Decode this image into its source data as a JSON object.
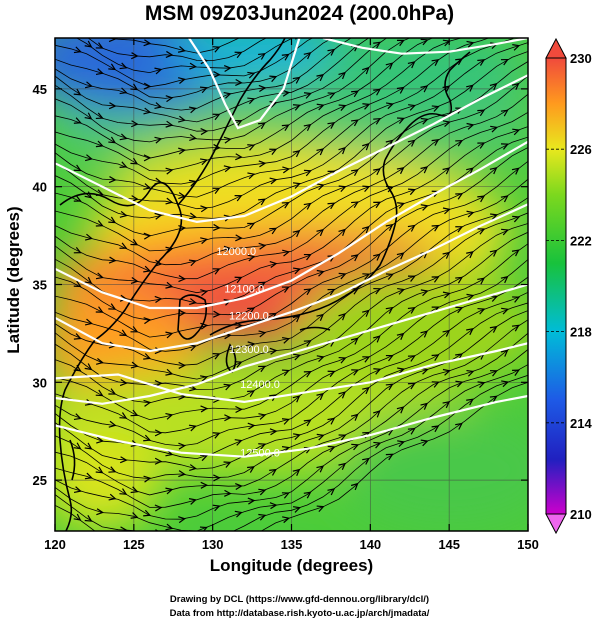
{
  "title": "MSM 09Z03Jun2024 (200.0hPa)",
  "xlabel": "Longitude (degrees)",
  "ylabel": "Latitude  (degrees)",
  "credits": [
    "Drawing by DCL (https://www.gfd-dennou.org/library/dcl/)",
    "Data from http://database.rish.kyoto-u.ac.jp/arch/jmadata/"
  ],
  "map": {
    "lon_range": [
      120,
      150
    ],
    "lat_range": [
      22.4,
      47.6
    ],
    "lon_ticks": [
      "120",
      "125",
      "130",
      "135",
      "140",
      "145",
      "150"
    ],
    "lat_ticks": [
      "25",
      "30",
      "35",
      "40",
      "45"
    ],
    "shaded_field": "temperature",
    "contour_field": "geopotential height",
    "vector_field": "wind streamlines"
  },
  "colorbar": {
    "min": 210,
    "max": 230,
    "tick_labels": [
      "210",
      "214",
      "218",
      "222",
      "226",
      "230"
    ],
    "colors": [
      "#cc00cc",
      "#2020c0",
      "#1e5ae6",
      "#00bcd8",
      "#18c23c",
      "#7cd81e",
      "#e8e81e",
      "#ff9a1e",
      "#f04a3c"
    ]
  },
  "contours": [
    {
      "label": "12000.0",
      "points": [
        [
          120,
          41.2
        ],
        [
          123,
          40.0
        ],
        [
          126,
          38.8
        ],
        [
          129,
          38.2
        ],
        [
          132,
          38.5
        ],
        [
          135,
          39.5
        ],
        [
          138,
          40.8
        ],
        [
          141,
          42.0
        ],
        [
          144,
          43.2
        ],
        [
          147,
          44.5
        ],
        [
          150,
          45.7
        ]
      ],
      "label_at": [
        131.5,
        36.5
      ]
    },
    {
      "label": "12100.0",
      "points": [
        [
          120,
          35.8
        ],
        [
          123,
          34.6
        ],
        [
          126,
          33.8
        ],
        [
          129,
          33.8
        ],
        [
          132,
          34.3
        ],
        [
          135,
          35.2
        ],
        [
          138,
          36.6
        ],
        [
          141,
          38.2
        ],
        [
          144,
          39.6
        ],
        [
          147,
          40.9
        ],
        [
          150,
          42.3
        ]
      ],
      "label_at": [
        132.0,
        34.6
      ]
    },
    {
      "label": "12200.0",
      "points": [
        [
          120,
          33.3
        ],
        [
          123,
          32.0
        ],
        [
          126,
          31.6
        ],
        [
          129,
          32.0
        ],
        [
          132,
          32.8
        ],
        [
          135,
          33.6
        ],
        [
          138,
          34.5
        ],
        [
          141,
          35.7
        ],
        [
          144,
          36.8
        ],
        [
          147,
          38.0
        ],
        [
          150,
          39.1
        ]
      ],
      "label_at": [
        132.3,
        33.2
      ]
    },
    {
      "label": "12300.0",
      "points": [
        [
          120,
          29.2
        ],
        [
          123,
          28.9
        ],
        [
          126,
          29.3
        ],
        [
          129,
          29.9
        ],
        [
          132,
          30.8
        ],
        [
          135,
          31.5
        ],
        [
          138,
          32.2
        ],
        [
          141,
          32.9
        ],
        [
          144,
          33.6
        ],
        [
          147,
          34.3
        ],
        [
          150,
          35.0
        ]
      ],
      "label_at": [
        132.3,
        31.5
      ]
    },
    {
      "label": "12400.0",
      "points": [
        [
          120,
          30.2
        ],
        [
          124,
          30.4
        ],
        [
          128,
          29.4
        ],
        [
          132,
          29.0
        ],
        [
          136,
          29.5
        ],
        [
          140,
          30.0
        ],
        [
          144,
          30.9
        ],
        [
          148,
          31.6
        ],
        [
          150,
          32.0
        ]
      ],
      "label_at": [
        133.0,
        29.7
      ]
    },
    {
      "label": "12500.0",
      "points": [
        [
          120,
          27.8
        ],
        [
          124,
          27.0
        ],
        [
          128,
          26.4
        ],
        [
          132,
          26.2
        ],
        [
          136,
          26.6
        ],
        [
          140,
          27.3
        ],
        [
          144,
          28.2
        ],
        [
          148,
          29.0
        ],
        [
          150,
          29.3
        ]
      ],
      "label_at": [
        133.0,
        26.2
      ]
    },
    {
      "label": "",
      "points": [
        [
          128.5,
          47.6
        ],
        [
          129.8,
          46.0
        ],
        [
          130.8,
          44.2
        ],
        [
          131.6,
          43.0
        ],
        [
          133.0,
          43.4
        ],
        [
          134.5,
          45.0
        ],
        [
          135.5,
          47.6
        ]
      ],
      "label_at": null
    },
    {
      "label": "",
      "points": [
        [
          137,
          47.6
        ],
        [
          139.5,
          47.1
        ],
        [
          142,
          46.8
        ],
        [
          145,
          46.9
        ],
        [
          148,
          47.3
        ],
        [
          150,
          47.6
        ]
      ],
      "label_at": null
    }
  ]
}
